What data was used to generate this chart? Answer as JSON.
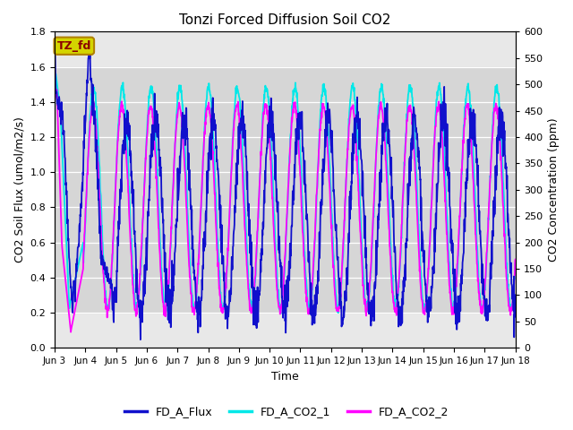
{
  "title": "Tonzi Forced Diffusion Soil CO2",
  "xlabel": "Time",
  "ylabel_left": "CO2 Soil Flux (umol/m2/s)",
  "ylabel_right": "CO2 Concentration (ppm)",
  "ylim_left": [
    0.0,
    1.8
  ],
  "ylim_right": [
    0,
    600
  ],
  "yticks_left": [
    0.0,
    0.2,
    0.4,
    0.6,
    0.8,
    1.0,
    1.2,
    1.4,
    1.6,
    1.8
  ],
  "yticks_right": [
    0,
    50,
    100,
    150,
    200,
    250,
    300,
    350,
    400,
    450,
    500,
    550,
    600
  ],
  "xtick_labels": [
    "Jun 3",
    "Jun 4",
    "Jun 5",
    "Jun 6",
    "Jun 7",
    "Jun 8",
    "Jun 9",
    "Jun 10",
    "Jun 11",
    "Jun 12",
    "Jun 13",
    "Jun 14",
    "Jun 15",
    "Jun 16",
    "Jun 17",
    "Jun 18"
  ],
  "colors": {
    "flux": "#1010cc",
    "co2_1": "#00e8e8",
    "co2_2": "#ff00ff",
    "fig_bg": "#ffffff",
    "axes_bg": "#e8e8e8",
    "shaded_bg": "#d4d4d4"
  },
  "legend_labels": [
    "FD_A_Flux",
    "FD_A_CO2_1",
    "FD_A_CO2_2"
  ],
  "annotation_text": "TZ_fd",
  "annotation_bg": "#d4d400",
  "annotation_border": "#b08000",
  "n_days": 16,
  "n_points_per_day": 96,
  "flux_noise_scale": 0.06,
  "co2_1_base": 285,
  "co2_1_amp": 210,
  "co2_2_base": 265,
  "co2_2_amp": 195
}
